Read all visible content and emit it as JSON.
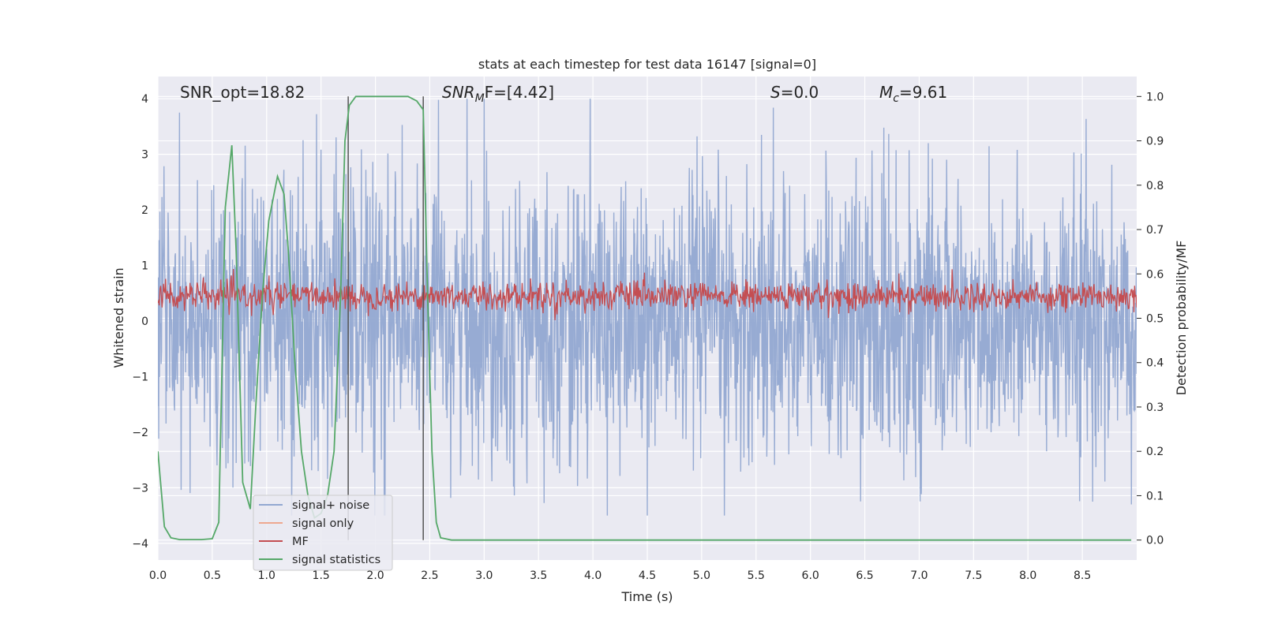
{
  "chart_data": {
    "type": "line",
    "title": "stats at each timestep for test data 16147 [signal=0]",
    "xlabel": "Time (s)",
    "ylabel": "Whitened strain",
    "ylabel_right": "Detection probability/MF",
    "xlim": [
      0.0,
      9.0
    ],
    "ylim": [
      -4.3,
      4.4
    ],
    "ylim_right": [
      -0.045,
      1.045
    ],
    "x_ticks": [
      "0.0",
      "0.5",
      "1.0",
      "1.5",
      "2.0",
      "2.5",
      "3.0",
      "3.5",
      "4.0",
      "4.5",
      "5.0",
      "5.5",
      "6.0",
      "6.5",
      "7.0",
      "7.5",
      "8.0",
      "8.5"
    ],
    "y_ticks": [
      "4",
      "3",
      "2",
      "1",
      "0",
      "−1",
      "−2",
      "−3",
      "−4"
    ],
    "y_ticks_right": [
      "1.0",
      "0.9",
      "0.8",
      "0.7",
      "0.6",
      "0.5",
      "0.4",
      "0.3",
      "0.2",
      "0.1",
      "0.0"
    ],
    "grid": true,
    "legend_position": "lower-left",
    "annotations": {
      "snr_opt": "SNR_opt=18.82",
      "snr_mf_base": "SNR",
      "snr_mf_sub": "M",
      "snr_mf_rest": "F=[4.42]",
      "s_var": "S",
      "s_rest": "=0.0",
      "mc_base": "M",
      "mc_sub": "c",
      "mc_rest": "=9.61"
    },
    "vertical_lines": [
      1.75,
      2.44
    ],
    "series": [
      {
        "name": "signal+ noise",
        "color": "#92a8d1",
        "approx_envelope": {
          "min": -3.5,
          "max": 4.0,
          "typical_abs": 1.7
        },
        "notable_peaks": [
          [
            0.2,
            3.75
          ],
          [
            3.0,
            4.0
          ],
          [
            5.55,
            3.35
          ],
          [
            4.5,
            -3.5
          ],
          [
            8.95,
            -3.3
          ]
        ]
      },
      {
        "name": "signal only",
        "color": "#eea88f",
        "values": "flat (no signal)"
      },
      {
        "name": "MF",
        "color": "#c44e52",
        "axis": "right",
        "approx_range": [
          0.5,
          0.6
        ],
        "mean": 0.55
      },
      {
        "name": "signal statistics",
        "color": "#55a868",
        "axis": "right",
        "x": [
          0.0,
          0.06,
          0.12,
          0.2,
          0.3,
          0.4,
          0.5,
          0.56,
          0.62,
          0.68,
          0.72,
          0.78,
          0.85,
          0.9,
          0.96,
          1.02,
          1.1,
          1.16,
          1.2,
          1.26,
          1.32,
          1.38,
          1.44,
          1.5,
          1.56,
          1.62,
          1.68,
          1.72,
          1.76,
          1.82,
          1.9,
          2.1,
          2.3,
          2.38,
          2.44,
          2.48,
          2.52,
          2.56,
          2.6,
          2.7,
          3.0,
          4.0,
          5.0,
          6.0,
          7.0,
          8.0,
          8.95
        ],
        "y": [
          0.2,
          0.03,
          0.005,
          0.001,
          0.001,
          0.001,
          0.003,
          0.04,
          0.75,
          0.89,
          0.65,
          0.13,
          0.07,
          0.3,
          0.55,
          0.72,
          0.82,
          0.78,
          0.65,
          0.4,
          0.2,
          0.1,
          0.05,
          0.06,
          0.1,
          0.2,
          0.55,
          0.9,
          0.98,
          1.0,
          1.0,
          1.0,
          1.0,
          0.99,
          0.97,
          0.55,
          0.2,
          0.04,
          0.005,
          0.0,
          0.0,
          0.0,
          0.0,
          0.0,
          0.0,
          0.0,
          0.0
        ]
      }
    ]
  }
}
